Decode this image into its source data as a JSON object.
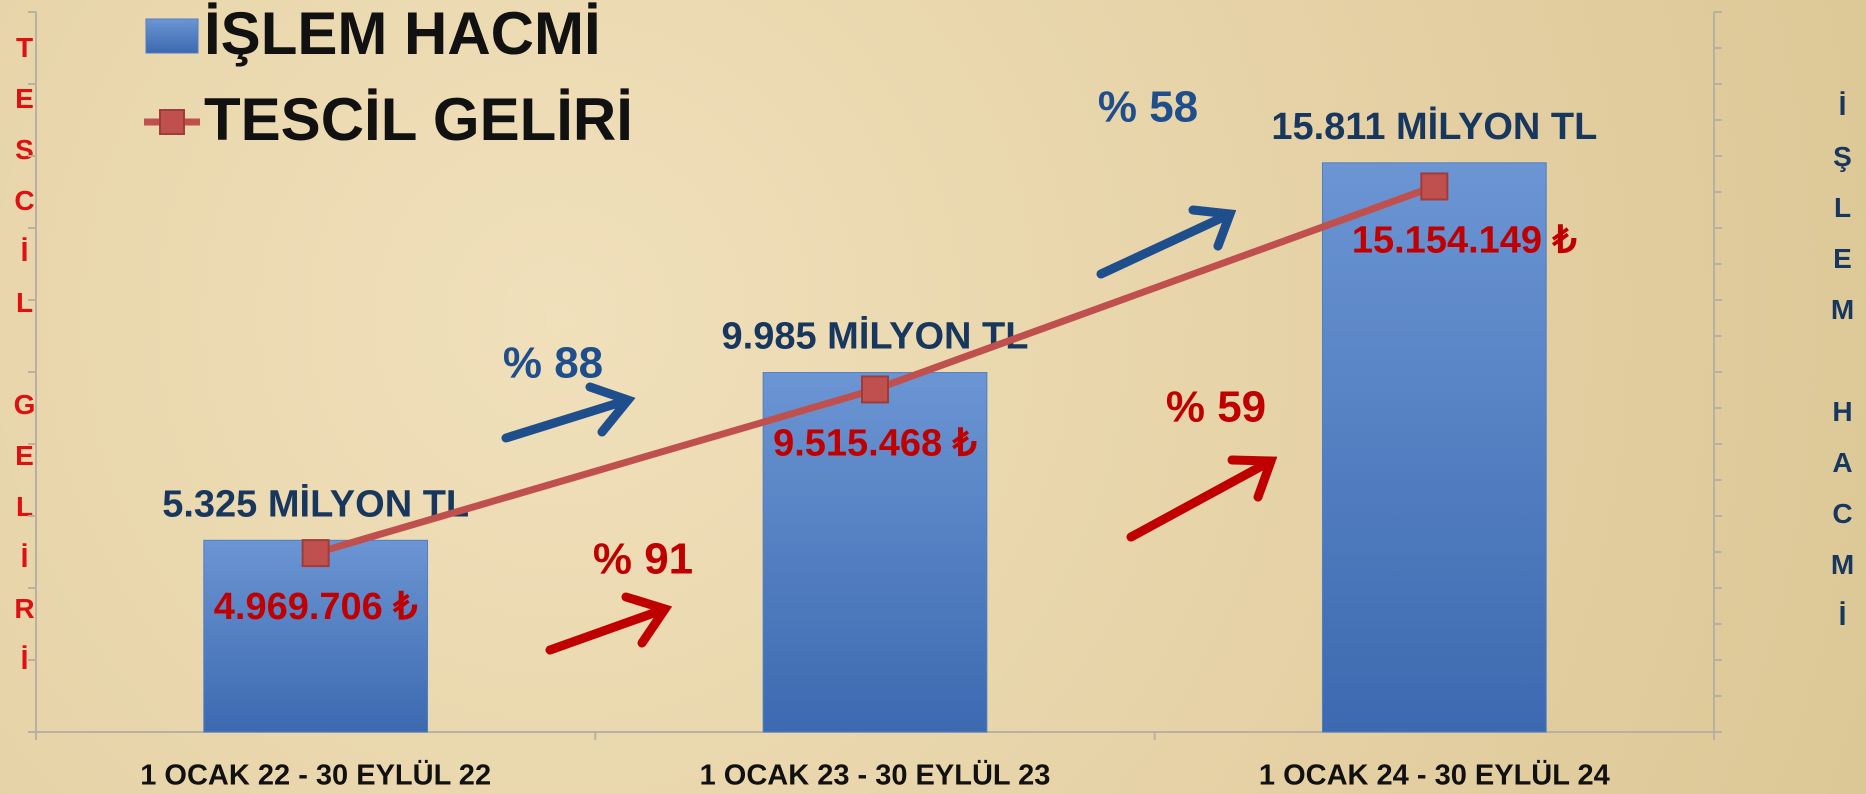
{
  "chart_data": {
    "type": "bar",
    "categories": [
      "1 OCAK 22 - 30 EYLÜL 22",
      "1 OCAK 23 - 30 EYLÜL 23",
      "1 OCAK 24 - 30 EYLÜL 24"
    ],
    "ylabel": "TESCİL GELİRİ",
    "y2label": "İŞLEM HACMİ",
    "ylim": [
      0,
      20000000
    ],
    "yticks": [
      0,
      2000000,
      4000000,
      6000000,
      8000000,
      10000000,
      12000000,
      14000000,
      16000000,
      18000000,
      20000000
    ],
    "y2lim": [
      0,
      20000
    ],
    "y2ticks": [
      0,
      1000,
      2000,
      3000,
      4000,
      5000,
      6000,
      7000,
      8000,
      9000,
      10000,
      11000,
      12000,
      13000,
      14000,
      15000,
      16000,
      17000,
      18000,
      19000,
      20000
    ],
    "legend": "upper left",
    "series": [
      {
        "name": "İŞLEM HACMİ",
        "type": "bar",
        "axis": "y2",
        "color": "#4f7fc4",
        "label_color": "#17375e",
        "values": [
          5325,
          9985,
          15811
        ],
        "value_labels": [
          "5.325 MİLYON TL",
          "9.985 MİLYON TL",
          "15.811 MİLYON TL"
        ]
      },
      {
        "name": "TESCİL GELİRİ",
        "type": "line",
        "color": "#c0504d",
        "label_color": "#c00000",
        "values": [
          4969706,
          9515468,
          15154149
        ],
        "value_labels": [
          "4.969.706 ₺",
          "9.515.468 ₺",
          "15.154.149 ₺"
        ]
      }
    ],
    "annotations": [
      {
        "text": "% 88",
        "color": "#1f4e8c"
      },
      {
        "text": "% 58",
        "color": "#1f4e8c"
      },
      {
        "text": "% 91",
        "color": "#c00000"
      },
      {
        "text": "% 59",
        "color": "#c00000"
      }
    ]
  }
}
